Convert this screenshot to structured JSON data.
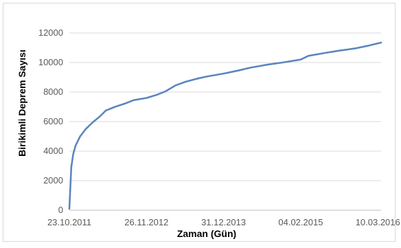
{
  "chart_data": {
    "type": "line",
    "title": "",
    "xlabel": "Zaman (Gün)",
    "ylabel": "Birikimli Deprem Sayısı",
    "ylim": [
      0,
      12000
    ],
    "yticks": [
      0,
      2000,
      4000,
      6000,
      8000,
      10000,
      12000
    ],
    "ytick_labels": [
      "0",
      "2000",
      "4000",
      "6000",
      "8000",
      "10000",
      "12000"
    ],
    "xlim": [
      "2011-10-23",
      "2016-03-27"
    ],
    "xticks": [
      "2011-10-23",
      "2012-11-26",
      "2013-12-31",
      "2015-02-04",
      "2016-03-10"
    ],
    "xtick_labels": [
      "23.10.2011",
      "26.11.2012",
      "31.12.2013",
      "04.02.2015",
      "10.03.2016"
    ],
    "grid": true,
    "legend": false,
    "series": [
      {
        "color": "#5b86be",
        "points": [
          [
            "2011-10-23",
            100
          ],
          [
            "2011-10-28",
            1500
          ],
          [
            "2011-11-02",
            2900
          ],
          [
            "2011-11-12",
            3800
          ],
          [
            "2011-11-25",
            4400
          ],
          [
            "2011-12-18",
            5000
          ],
          [
            "2012-01-16",
            5500
          ],
          [
            "2012-02-21",
            5950
          ],
          [
            "2012-03-29",
            6350
          ],
          [
            "2012-04-29",
            6750
          ],
          [
            "2012-06-16",
            7000
          ],
          [
            "2012-08-13",
            7250
          ],
          [
            "2012-09-20",
            7450
          ],
          [
            "2012-11-26",
            7600
          ],
          [
            "2013-01-16",
            7800
          ],
          [
            "2013-03-05",
            8050
          ],
          [
            "2013-04-26",
            8450
          ],
          [
            "2013-06-17",
            8700
          ],
          [
            "2013-08-13",
            8900
          ],
          [
            "2013-10-05",
            9050
          ],
          [
            "2013-12-31",
            9250
          ],
          [
            "2014-03-15",
            9450
          ],
          [
            "2014-05-19",
            9650
          ],
          [
            "2014-08-13",
            9850
          ],
          [
            "2014-11-02",
            10000
          ],
          [
            "2015-02-04",
            10200
          ],
          [
            "2015-03-16",
            10450
          ],
          [
            "2015-06-11",
            10650
          ],
          [
            "2015-08-21",
            10800
          ],
          [
            "2015-11-11",
            10950
          ],
          [
            "2016-01-24",
            11150
          ],
          [
            "2016-03-10",
            11300
          ],
          [
            "2016-03-27",
            11350
          ]
        ]
      }
    ]
  }
}
